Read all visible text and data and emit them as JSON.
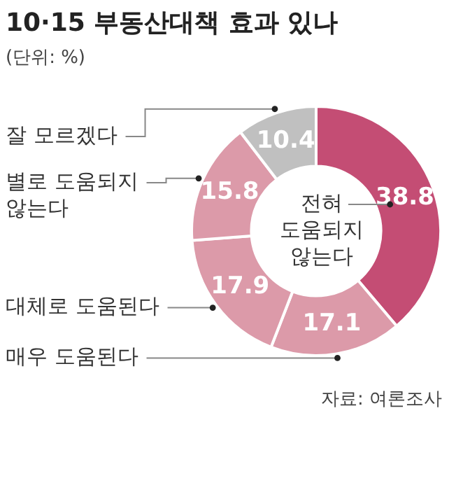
{
  "chart_data": {
    "type": "donut",
    "title": "10·15 부동산대책 효과 있나",
    "subtitle": "(단위: %)",
    "categories": [
      "전혀 도움되지 않는다",
      "매우 도움된다",
      "대체로 도움된다",
      "별로 도움되지 않는다",
      "잘 모르겠다"
    ],
    "values": [
      38.8,
      17.1,
      17.9,
      15.8,
      10.4
    ],
    "colors": [
      "#c44d74",
      "#dc9aa9",
      "#dc9aa9",
      "#dc9aa9",
      "#c0c0c0"
    ],
    "data_labels": true,
    "annotations": [
      "자료: 여론조사"
    ]
  }
}
